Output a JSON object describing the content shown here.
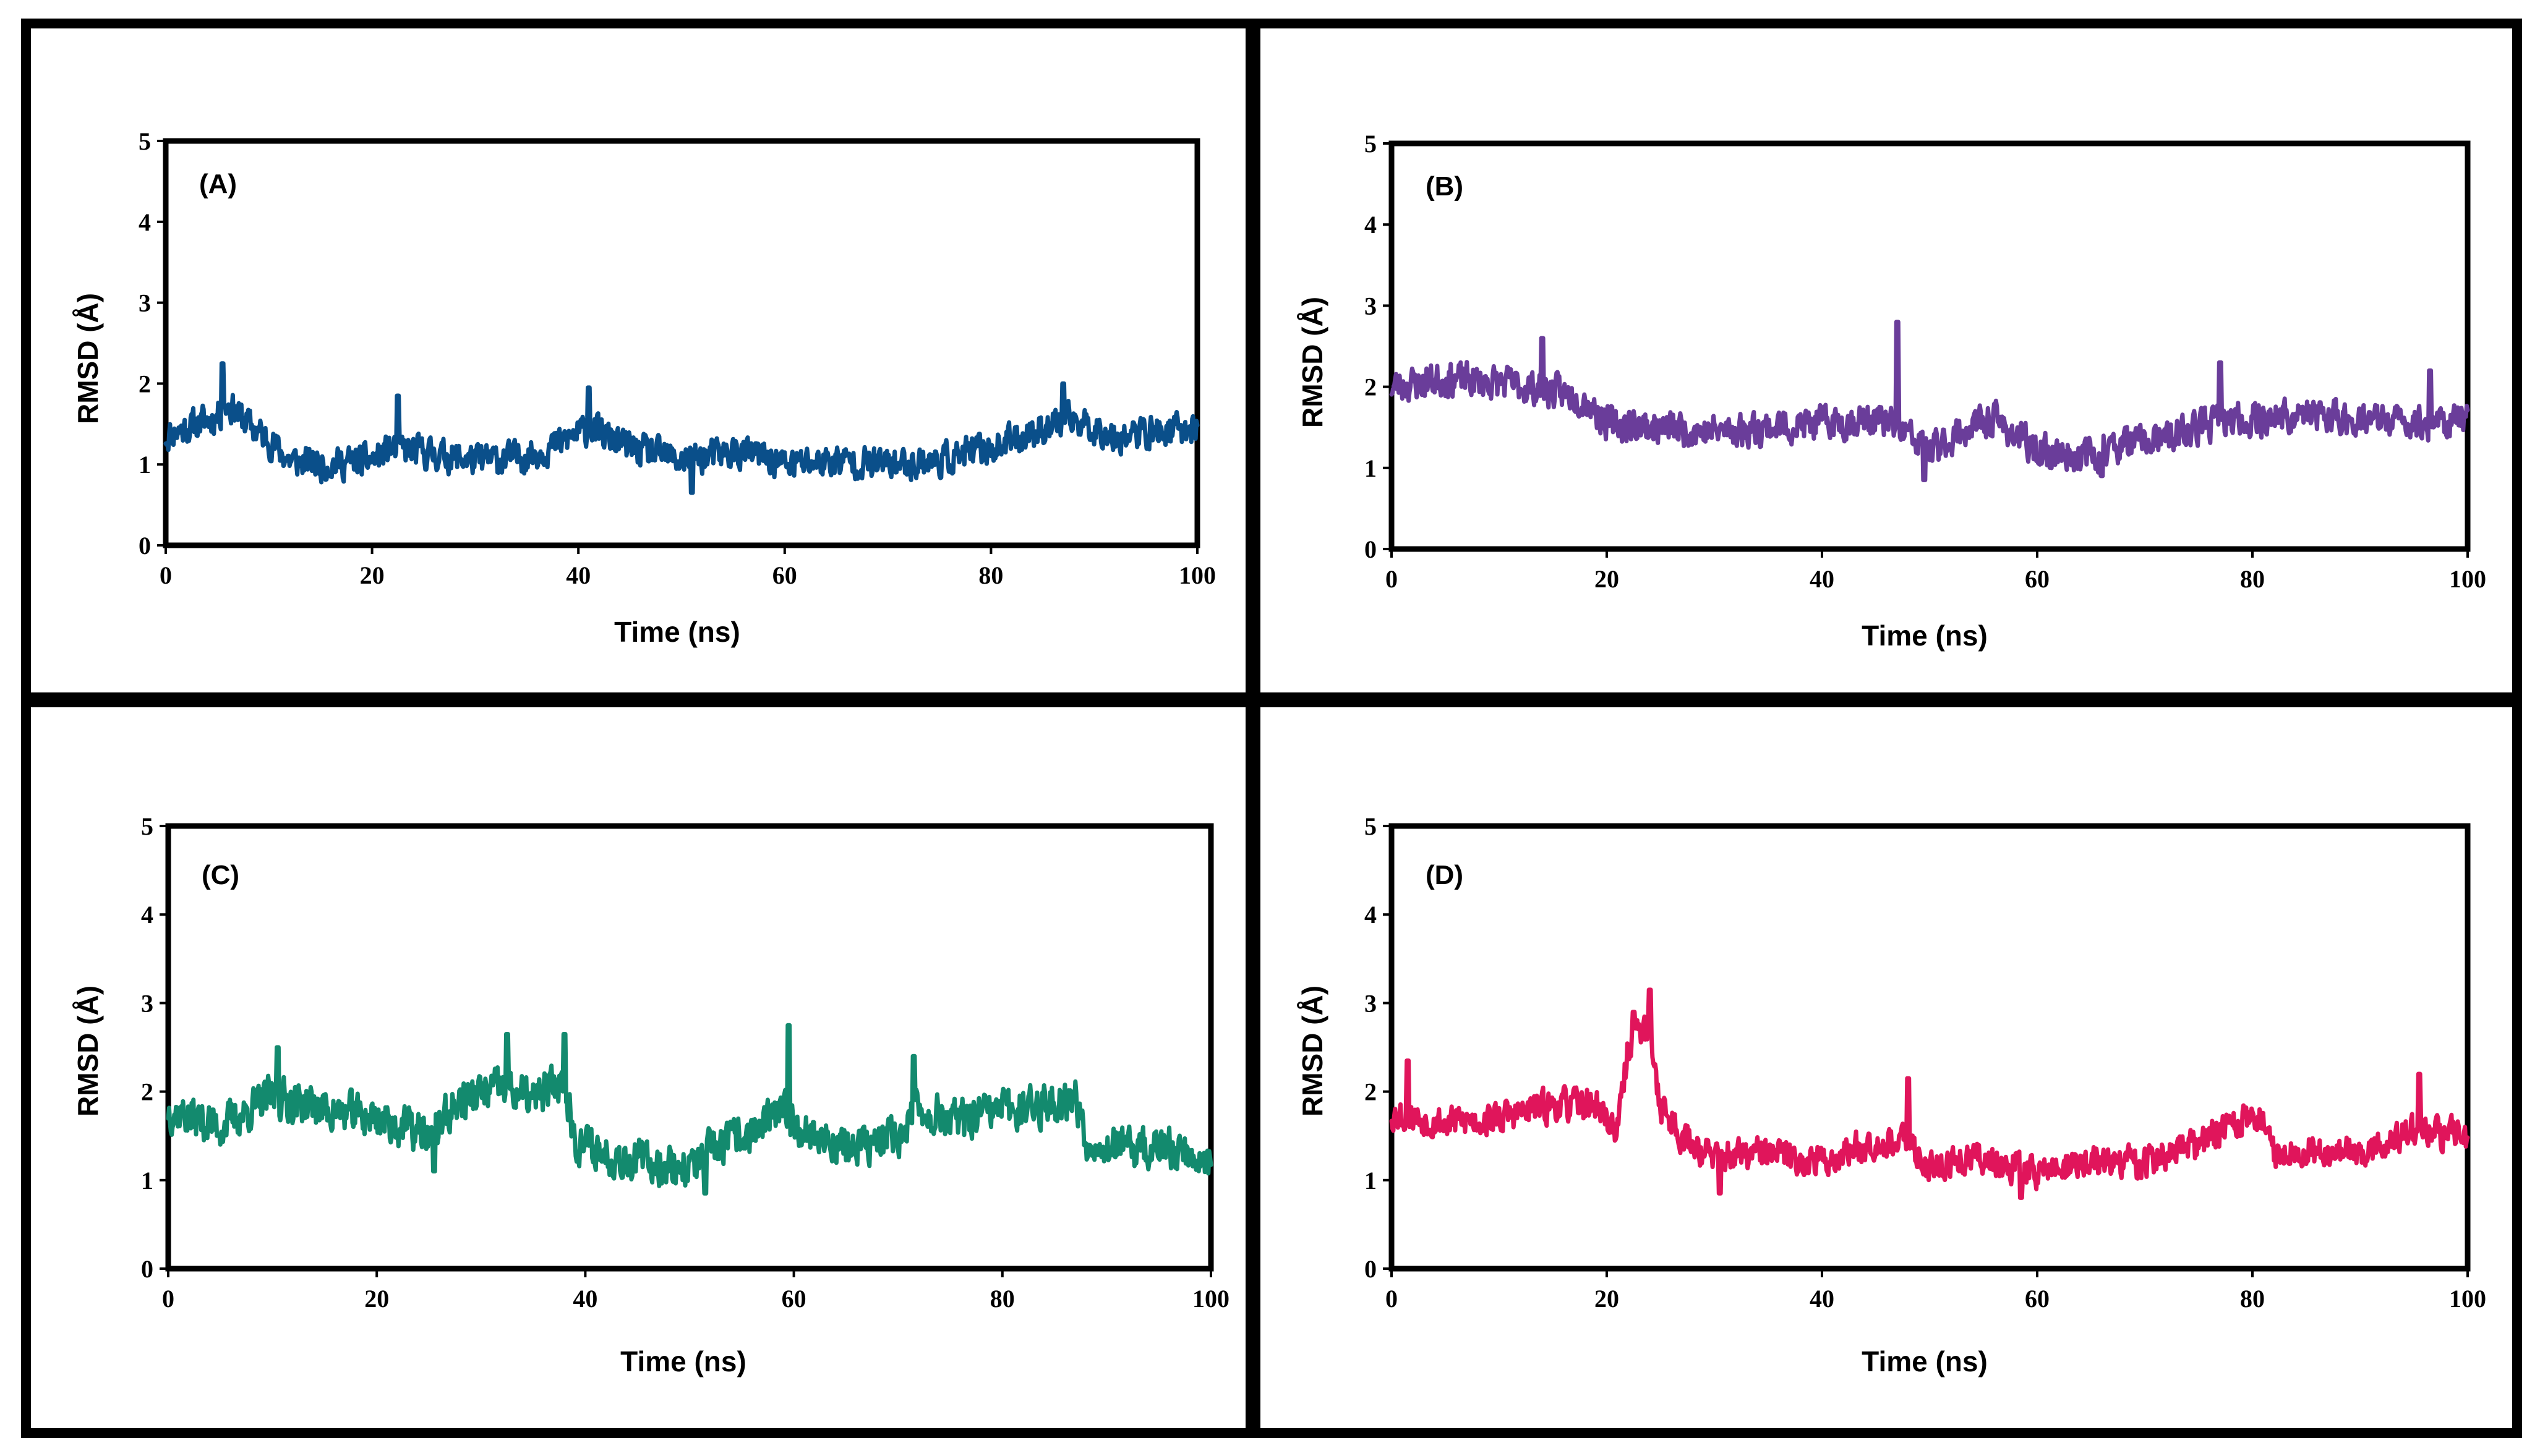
{
  "chart_data": [
    {
      "type": "line",
      "panel_label": "(A)",
      "xlabel": "Time (ns)",
      "ylabel": "RMSD (Å)",
      "xlim": [
        0,
        100
      ],
      "ylim": [
        0,
        5
      ],
      "xticks": [
        "0",
        "20",
        "40",
        "60",
        "80",
        "100"
      ],
      "yticks": [
        "0",
        "1",
        "2",
        "3",
        "4",
        "5"
      ],
      "color": "#0a4f8a",
      "series": [
        {
          "name": "(A)",
          "amplitude": 0.17,
          "seed": 11,
          "x": [
            0,
            3,
            5,
            6,
            8,
            10,
            12,
            15,
            20,
            22,
            25,
            30,
            35,
            38,
            41,
            45,
            50,
            55,
            58,
            60,
            65,
            70,
            75,
            80,
            85,
            88,
            92,
            96,
            100
          ],
          "y": [
            1.35,
            1.5,
            1.6,
            1.75,
            1.5,
            1.3,
            1.05,
            1.0,
            1.05,
            1.2,
            1.15,
            1.05,
            1.1,
            1.25,
            1.45,
            1.2,
            1.05,
            1.15,
            1.1,
            1.0,
            1.05,
            1.0,
            1.05,
            1.2,
            1.45,
            1.55,
            1.35,
            1.4,
            1.45
          ],
          "spikes": [
            [
              5.5,
              2.25
            ],
            [
              22.5,
              1.85
            ],
            [
              41,
              1.95
            ],
            [
              87,
              2.0
            ],
            [
              51,
              0.65
            ]
          ]
        }
      ]
    },
    {
      "type": "line",
      "panel_label": "(B)",
      "xlabel": "Time (ns)",
      "ylabel": "RMSD (Å)",
      "xlim": [
        0,
        100
      ],
      "ylim": [
        0,
        5
      ],
      "xticks": [
        "0",
        "20",
        "40",
        "60",
        "80",
        "100"
      ],
      "yticks": [
        "0",
        "1",
        "2",
        "3",
        "4",
        "5"
      ],
      "color": "#6a3d9a",
      "series": [
        {
          "name": "(B)",
          "amplitude": 0.18,
          "seed": 23,
          "x": [
            0,
            5,
            10,
            15,
            18,
            20,
            25,
            30,
            35,
            40,
            45,
            47,
            50,
            53,
            56,
            60,
            65,
            68,
            72,
            76,
            80,
            85,
            90,
            95,
            100
          ],
          "y": [
            2.0,
            2.1,
            2.05,
            1.95,
            1.85,
            1.55,
            1.5,
            1.45,
            1.5,
            1.55,
            1.6,
            1.5,
            1.2,
            1.45,
            1.6,
            1.2,
            1.15,
            1.3,
            1.35,
            1.55,
            1.6,
            1.65,
            1.6,
            1.55,
            1.6
          ],
          "spikes": [
            [
              47,
              2.8
            ],
            [
              14,
              2.6
            ],
            [
              77,
              2.3
            ],
            [
              96.5,
              2.2
            ],
            [
              49.5,
              0.85
            ],
            [
              66,
              0.9
            ]
          ]
        }
      ]
    },
    {
      "type": "line",
      "panel_label": "(C)",
      "xlabel": "Time (ns)",
      "ylabel": "RMSD (Å)",
      "xlim": [
        0,
        100
      ],
      "ylim": [
        0,
        5
      ],
      "xticks": [
        "0",
        "20",
        "40",
        "60",
        "80",
        "100"
      ],
      "yticks": [
        "0",
        "1",
        "2",
        "3",
        "4",
        "5"
      ],
      "color": "#138a6e",
      "series": [
        {
          "name": "(C)",
          "amplitude": 0.2,
          "seed": 37,
          "x": [
            0,
            5,
            10,
            15,
            20,
            25,
            28,
            32,
            35,
            38,
            39,
            42,
            46,
            50,
            53,
            56,
            59,
            62,
            66,
            70,
            72,
            76,
            80,
            84,
            87,
            88,
            92,
            96,
            100
          ],
          "y": [
            1.8,
            1.6,
            1.95,
            1.8,
            1.7,
            1.5,
            1.9,
            2.05,
            1.9,
            2.15,
            1.45,
            1.3,
            1.2,
            1.15,
            1.4,
            1.55,
            1.75,
            1.5,
            1.35,
            1.5,
            1.8,
            1.65,
            1.8,
            1.85,
            1.95,
            1.45,
            1.35,
            1.35,
            1.25
          ],
          "spikes": [
            [
              59.5,
              2.75
            ],
            [
              32.5,
              2.65
            ],
            [
              38,
              2.65
            ],
            [
              10.5,
              2.5
            ],
            [
              71.5,
              2.4
            ],
            [
              51.5,
              0.85
            ],
            [
              25.5,
              1.1
            ]
          ]
        }
      ]
    },
    {
      "type": "line",
      "panel_label": "(D)",
      "xlabel": "Time (ns)",
      "ylabel": "RMSD (Å)",
      "xlim": [
        0,
        100
      ],
      "ylim": [
        0,
        5
      ],
      "xticks": [
        "0",
        "20",
        "40",
        "60",
        "80",
        "100"
      ],
      "yticks": [
        "0",
        "1",
        "2",
        "3",
        "4",
        "5"
      ],
      "color": "#e0155b",
      "series": [
        {
          "name": "(D)",
          "amplitude": 0.16,
          "seed": 53,
          "x": [
            0,
            5,
            10,
            15,
            19,
            21,
            22,
            23,
            24,
            25,
            27,
            30,
            35,
            40,
            45,
            48,
            50,
            55,
            60,
            65,
            70,
            75,
            78,
            81,
            82,
            85,
            90,
            95,
            100
          ],
          "y": [
            1.75,
            1.65,
            1.7,
            1.85,
            1.85,
            1.55,
            2.5,
            2.75,
            2.6,
            1.85,
            1.5,
            1.25,
            1.3,
            1.2,
            1.45,
            1.4,
            1.15,
            1.25,
            1.1,
            1.2,
            1.2,
            1.4,
            1.65,
            1.7,
            1.3,
            1.35,
            1.3,
            1.55,
            1.5
          ],
          "spikes": [
            [
              24,
              3.15
            ],
            [
              22.5,
              2.9
            ],
            [
              1.5,
              2.35
            ],
            [
              48,
              2.15
            ],
            [
              95.5,
              2.2
            ],
            [
              58.5,
              0.8
            ],
            [
              30.5,
              0.85
            ]
          ]
        }
      ]
    }
  ]
}
